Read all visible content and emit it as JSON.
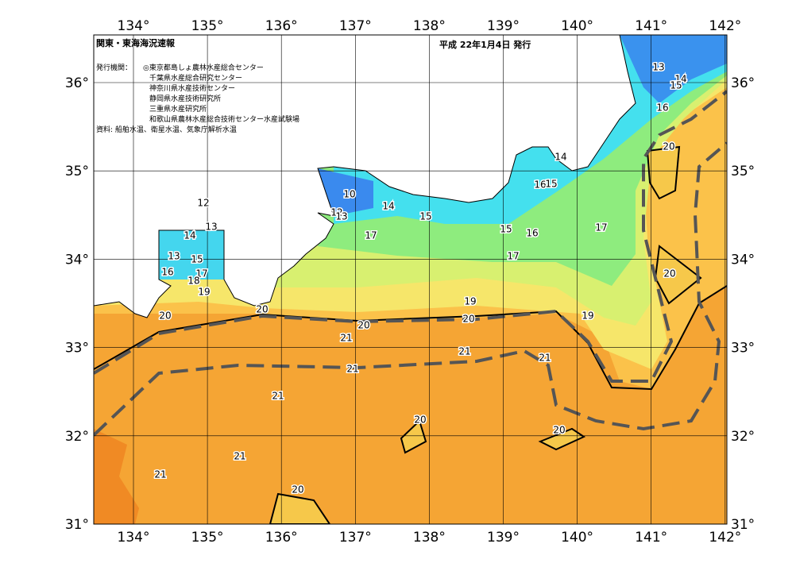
{
  "header": {
    "title": "関東・東海海況速報",
    "date": "平成 22年1月4日 発行",
    "issuer_label": "発行機関：",
    "issuers": [
      "◎東京都島しょ農林水産総合センター",
      "千葉県水産総合研究センター",
      "神奈川県水産技術センター",
      "静岡県水産技術研究所",
      "三重県水産研究所",
      "和歌山県農林水産総合技術センター水産試験場"
    ],
    "source": "資料: 船舶水温、衛星水温、気象庁解析水温"
  },
  "map": {
    "longitudes": [
      "134°",
      "135°",
      "136°",
      "137°",
      "138°",
      "139°",
      "140°",
      "141°",
      "142°"
    ],
    "latitudes": [
      "36°",
      "35°",
      "34°",
      "33°",
      "32°",
      "31°"
    ],
    "contour_labels": [
      "13",
      "14",
      "15",
      "16",
      "20",
      "14",
      "16",
      "15",
      "12",
      "13",
      "14",
      "13",
      "15",
      "16",
      "17",
      "18",
      "19",
      "10",
      "12",
      "13",
      "14",
      "15",
      "17",
      "15",
      "16",
      "17",
      "17",
      "20",
      "19",
      "19",
      "20",
      "20",
      "20",
      "20",
      "21",
      "21",
      "21",
      "21",
      "21",
      "20",
      "20",
      "21",
      "21",
      "20"
    ]
  }
}
